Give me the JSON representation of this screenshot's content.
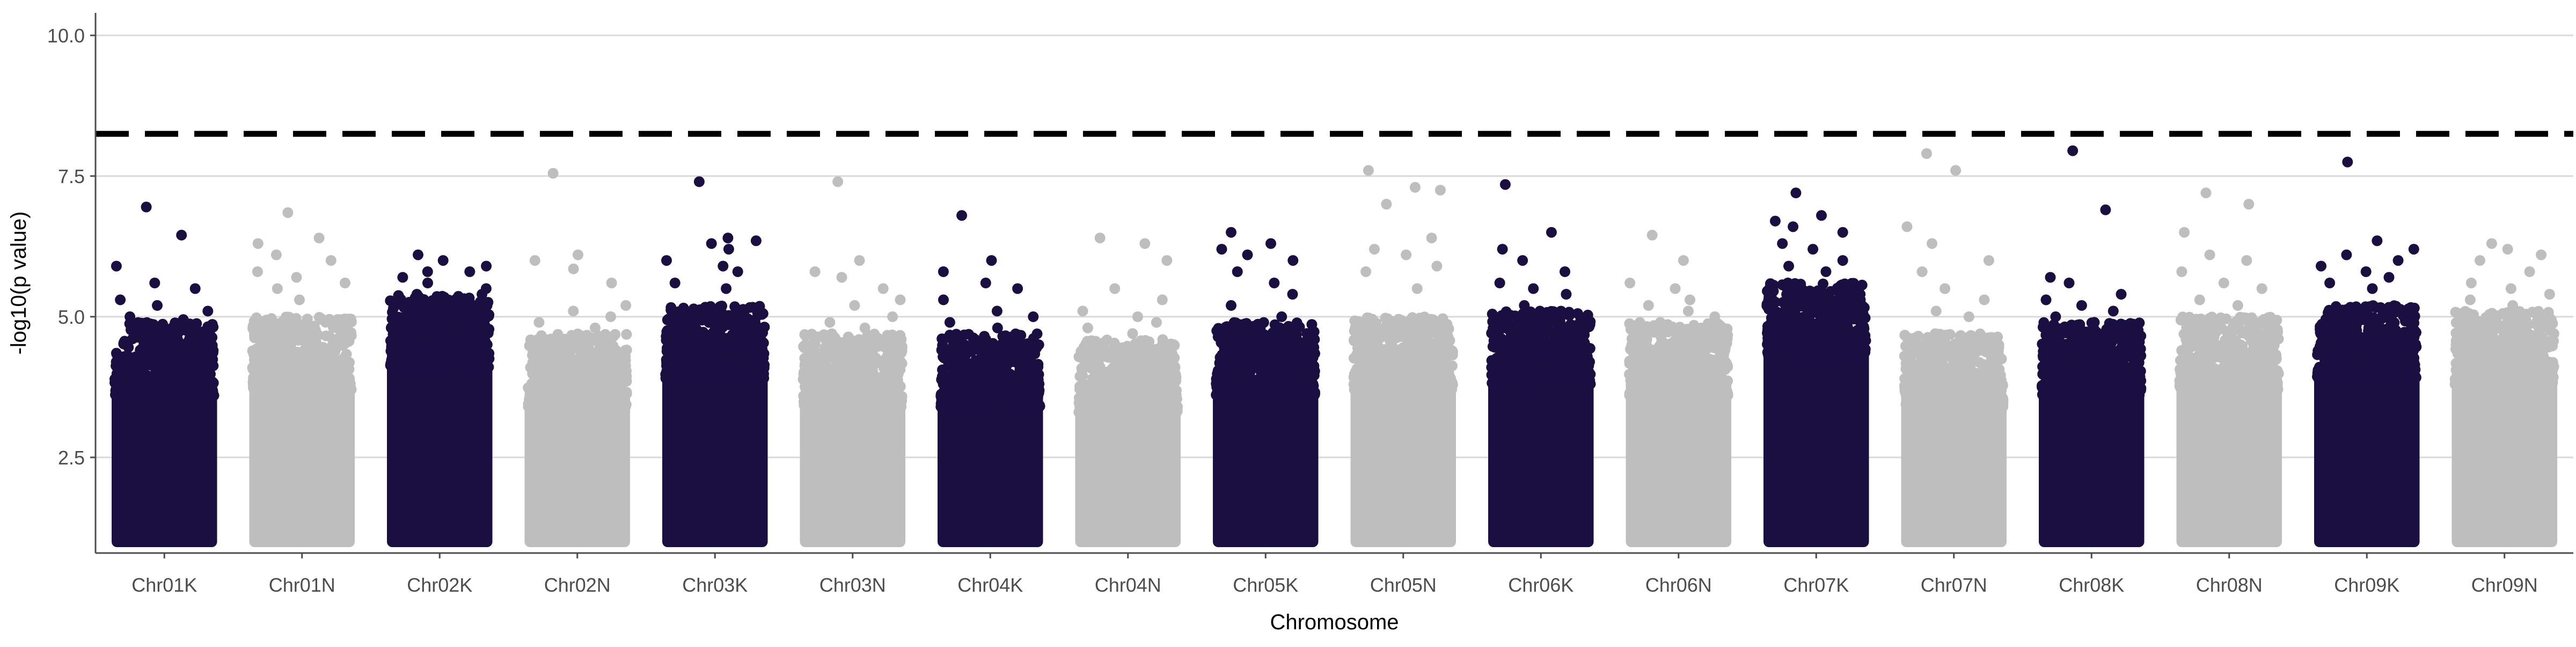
{
  "chart_data": {
    "type": "scatter",
    "title": "",
    "xlabel": "Chromosome",
    "ylabel": "-log10(p value)",
    "ylim": [
      0.8,
      10.4
    ],
    "y_ticks": [
      2.5,
      5.0,
      7.5,
      10.0
    ],
    "y_tick_labels": [
      "2.5",
      "5.0",
      "7.5",
      "10.0"
    ],
    "threshold": 8.25,
    "grid": "horizontal",
    "legend": "none",
    "colors": {
      "K": "#1b0f42",
      "N": "#bebebe",
      "threshold": "#000000",
      "grid": "#d9d9d9",
      "axis": "#4d4d4d"
    },
    "categories": [
      "Chr01K",
      "Chr01N",
      "Chr02K",
      "Chr02N",
      "Chr03K",
      "Chr03N",
      "Chr04K",
      "Chr04N",
      "Chr05K",
      "Chr05N",
      "Chr06K",
      "Chr06N",
      "Chr07K",
      "Chr07N",
      "Chr08K",
      "Chr08N",
      "Chr09K",
      "Chr09N"
    ],
    "series": [
      {
        "name": "Chr01K",
        "typical_max": 4.5,
        "top_points": [
          6.95,
          6.45,
          5.9,
          5.6,
          5.5,
          5.3,
          5.2,
          5.1,
          5.0,
          4.95
        ]
      },
      {
        "name": "Chr01N",
        "typical_max": 4.6,
        "top_points": [
          6.85,
          6.4,
          6.3,
          6.1,
          6.0,
          5.8,
          5.7,
          5.6,
          5.5,
          5.3
        ]
      },
      {
        "name": "Chr02K",
        "typical_max": 5.0,
        "top_points": [
          6.1,
          6.0,
          5.9,
          5.8,
          5.8,
          5.7,
          5.6,
          5.5,
          5.4,
          5.3
        ]
      },
      {
        "name": "Chr02N",
        "typical_max": 4.3,
        "top_points": [
          7.55,
          6.1,
          6.0,
          5.85,
          5.6,
          5.2,
          5.1,
          5.0,
          4.9,
          4.8
        ]
      },
      {
        "name": "Chr03K",
        "typical_max": 4.8,
        "top_points": [
          7.4,
          6.4,
          6.35,
          6.3,
          6.2,
          6.0,
          5.9,
          5.8,
          5.6,
          5.5
        ]
      },
      {
        "name": "Chr03N",
        "typical_max": 4.3,
        "top_points": [
          7.4,
          6.0,
          5.8,
          5.7,
          5.5,
          5.3,
          5.2,
          5.0,
          4.9,
          4.8
        ]
      },
      {
        "name": "Chr04K",
        "typical_max": 4.3,
        "top_points": [
          6.8,
          6.0,
          5.8,
          5.6,
          5.5,
          5.3,
          5.1,
          5.0,
          4.9,
          4.8
        ]
      },
      {
        "name": "Chr04N",
        "typical_max": 4.2,
        "top_points": [
          6.4,
          6.3,
          6.0,
          5.5,
          5.3,
          5.1,
          5.0,
          4.9,
          4.8,
          4.7
        ]
      },
      {
        "name": "Chr05K",
        "typical_max": 4.5,
        "top_points": [
          6.5,
          6.3,
          6.2,
          6.1,
          6.0,
          5.8,
          5.6,
          5.4,
          5.2,
          5.0
        ]
      },
      {
        "name": "Chr05N",
        "typical_max": 4.6,
        "top_points": [
          7.6,
          7.3,
          7.25,
          7.0,
          6.4,
          6.2,
          6.1,
          5.9,
          5.8,
          5.5
        ]
      },
      {
        "name": "Chr06K",
        "typical_max": 4.7,
        "top_points": [
          7.35,
          6.5,
          6.2,
          6.0,
          5.8,
          5.6,
          5.5,
          5.4,
          5.2,
          5.1
        ]
      },
      {
        "name": "Chr06N",
        "typical_max": 4.5,
        "top_points": [
          6.45,
          6.0,
          5.6,
          5.5,
          5.3,
          5.2,
          5.1,
          5.0,
          4.9,
          4.8
        ]
      },
      {
        "name": "Chr07K",
        "typical_max": 5.2,
        "top_points": [
          7.2,
          6.8,
          6.7,
          6.6,
          6.5,
          6.3,
          6.2,
          6.0,
          5.9,
          5.8
        ]
      },
      {
        "name": "Chr07N",
        "typical_max": 4.3,
        "top_points": [
          7.9,
          7.6,
          6.6,
          6.3,
          6.0,
          5.8,
          5.5,
          5.3,
          5.1,
          5.0
        ]
      },
      {
        "name": "Chr08K",
        "typical_max": 4.5,
        "top_points": [
          7.95,
          6.9,
          5.7,
          5.6,
          5.4,
          5.3,
          5.2,
          5.1,
          5.0,
          4.9
        ]
      },
      {
        "name": "Chr08N",
        "typical_max": 4.6,
        "top_points": [
          7.2,
          7.0,
          6.5,
          6.1,
          6.0,
          5.8,
          5.6,
          5.5,
          5.3,
          5.2
        ]
      },
      {
        "name": "Chr09K",
        "typical_max": 4.8,
        "top_points": [
          7.75,
          6.35,
          6.2,
          6.1,
          6.0,
          5.9,
          5.8,
          5.7,
          5.6,
          5.5
        ]
      },
      {
        "name": "Chr09N",
        "typical_max": 4.7,
        "top_points": [
          6.3,
          6.2,
          6.1,
          6.0,
          5.8,
          5.6,
          5.5,
          5.4,
          5.3,
          5.2
        ]
      }
    ]
  }
}
